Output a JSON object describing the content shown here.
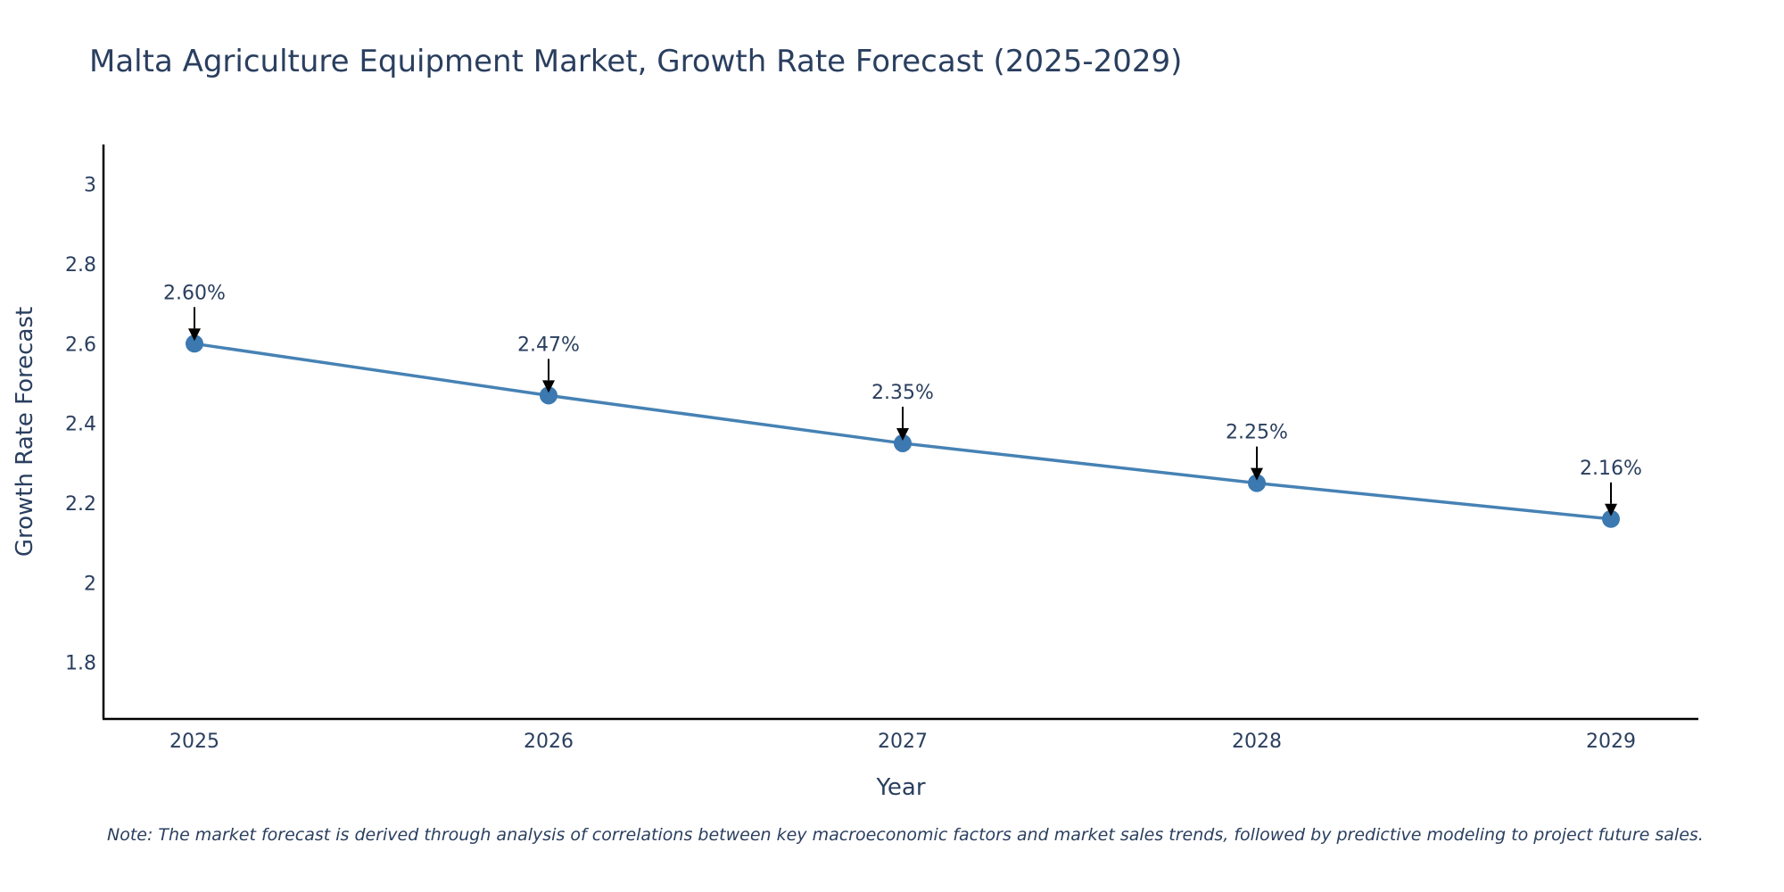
{
  "chart_data": {
    "type": "line",
    "title": "Malta Agriculture Equipment Market, Growth Rate Forecast (2025-2029)",
    "xlabel": "Year",
    "ylabel": "Growth Rate Forecast",
    "categories": [
      "2025",
      "2026",
      "2027",
      "2028",
      "2029"
    ],
    "series": [
      {
        "name": "Growth Rate Forecast",
        "values": [
          2.6,
          2.47,
          2.35,
          2.25,
          2.16
        ],
        "color": "#4682b4"
      }
    ],
    "data_labels": [
      "2.60%",
      "2.47%",
      "2.35%",
      "2.25%",
      "2.16%"
    ],
    "ylim": [
      1.658,
      3.1
    ],
    "yticks": [
      1.8,
      2,
      2.2,
      2.4,
      2.6,
      2.8,
      3
    ],
    "ytick_labels": [
      "1.8",
      "2",
      "2.2",
      "2.4",
      "2.6",
      "2.8",
      "3"
    ],
    "grid": false,
    "note": "Note: The market forecast is derived through analysis of correlations between key macroeconomic factors and market sales trends, followed by predictive modeling to project future sales."
  },
  "colors": {
    "line": "#4682b4",
    "marker": "#3b79b0",
    "text": "#2a3f5f",
    "axis": "#000000",
    "arrow": "#000000"
  }
}
